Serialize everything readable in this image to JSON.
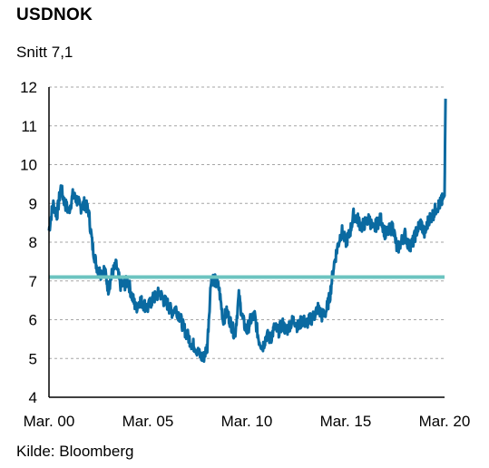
{
  "title": "USDNOK",
  "subtitle": "Snitt 7,1",
  "source": "Kilde: Bloomberg",
  "colors": {
    "series": "#0a6aa1",
    "average": "#6cc4c0",
    "grid": "#a6a6a6",
    "axis": "#000000"
  },
  "chart_data": {
    "type": "line",
    "title": "USDNOK",
    "subtitle": "Snitt 7,1",
    "xlabel": "",
    "ylabel": "",
    "ylim": [
      4,
      12
    ],
    "yticks": [
      4,
      5,
      6,
      7,
      8,
      9,
      10,
      11,
      12
    ],
    "xlim": [
      2000.0,
      2020.0
    ],
    "xticks": [
      {
        "x": 2000.0,
        "label": "Mar. 00"
      },
      {
        "x": 2005.0,
        "label": "Mar. 05"
      },
      {
        "x": 2010.0,
        "label": "Mar. 10"
      },
      {
        "x": 2015.0,
        "label": "Mar. 15"
      },
      {
        "x": 2020.0,
        "label": "Mar. 20"
      }
    ],
    "grid": "horizontal dashed",
    "series": [
      {
        "x": [
          2000.0,
          2000.2,
          2000.4,
          2000.6,
          2000.8,
          2001.0,
          2001.2,
          2001.4,
          2001.6,
          2001.8,
          2002.0,
          2002.2,
          2002.4,
          2002.6,
          2002.8,
          2003.0,
          2003.2,
          2003.4,
          2003.6,
          2003.8,
          2004.0,
          2004.2,
          2004.4,
          2004.6,
          2004.8,
          2005.0,
          2005.2,
          2005.4,
          2005.6,
          2005.8,
          2006.0,
          2006.2,
          2006.4,
          2006.6,
          2006.8,
          2007.0,
          2007.2,
          2007.4,
          2007.6,
          2007.8,
          2008.0,
          2008.2,
          2008.4,
          2008.6,
          2008.8,
          2009.0,
          2009.2,
          2009.4,
          2009.6,
          2009.8,
          2010.0,
          2010.2,
          2010.4,
          2010.6,
          2010.8,
          2011.0,
          2011.2,
          2011.4,
          2011.6,
          2011.8,
          2012.0,
          2012.2,
          2012.4,
          2012.6,
          2012.8,
          2013.0,
          2013.2,
          2013.4,
          2013.6,
          2013.8,
          2014.0,
          2014.2,
          2014.4,
          2014.6,
          2014.8,
          2015.0,
          2015.2,
          2015.4,
          2015.6,
          2015.8,
          2016.0,
          2016.2,
          2016.4,
          2016.6,
          2016.8,
          2017.0,
          2017.2,
          2017.4,
          2017.6,
          2017.8,
          2018.0,
          2018.2,
          2018.4,
          2018.6,
          2018.8,
          2019.0,
          2019.2,
          2019.4,
          2019.6,
          2019.8,
          2019.9,
          2020.0,
          2020.05
        ],
        "y": [
          8.3,
          9.0,
          8.7,
          9.4,
          9.0,
          8.8,
          9.2,
          9.1,
          8.9,
          9.0,
          8.8,
          7.9,
          7.4,
          7.2,
          7.3,
          6.8,
          7.2,
          7.4,
          6.9,
          6.9,
          7.0,
          6.6,
          6.3,
          6.5,
          6.4,
          6.3,
          6.5,
          6.6,
          6.7,
          6.5,
          6.4,
          6.2,
          6.3,
          6.1,
          5.8,
          5.6,
          5.4,
          5.3,
          5.1,
          5.0,
          5.3,
          7.1,
          7.0,
          6.8,
          6.0,
          6.2,
          5.9,
          5.6,
          6.6,
          6.0,
          5.7,
          6.0,
          6.1,
          5.5,
          5.3,
          5.6,
          5.5,
          5.8,
          5.7,
          5.9,
          5.7,
          5.9,
          6.0,
          5.8,
          6.0,
          5.9,
          6.0,
          6.1,
          6.3,
          6.1,
          6.2,
          6.6,
          7.4,
          7.9,
          8.3,
          8.0,
          8.2,
          8.7,
          8.6,
          8.4,
          8.5,
          8.6,
          8.3,
          8.5,
          8.6,
          8.2,
          8.3,
          8.4,
          7.8,
          8.0,
          8.2,
          7.9,
          8.0,
          8.3,
          8.5,
          8.2,
          8.6,
          8.7,
          8.9,
          9.0,
          9.1,
          9.2,
          11.7
        ]
      },
      {
        "x": [
          2000.0,
          2020.0
        ],
        "y": [
          7.1,
          7.1
        ]
      }
    ]
  }
}
